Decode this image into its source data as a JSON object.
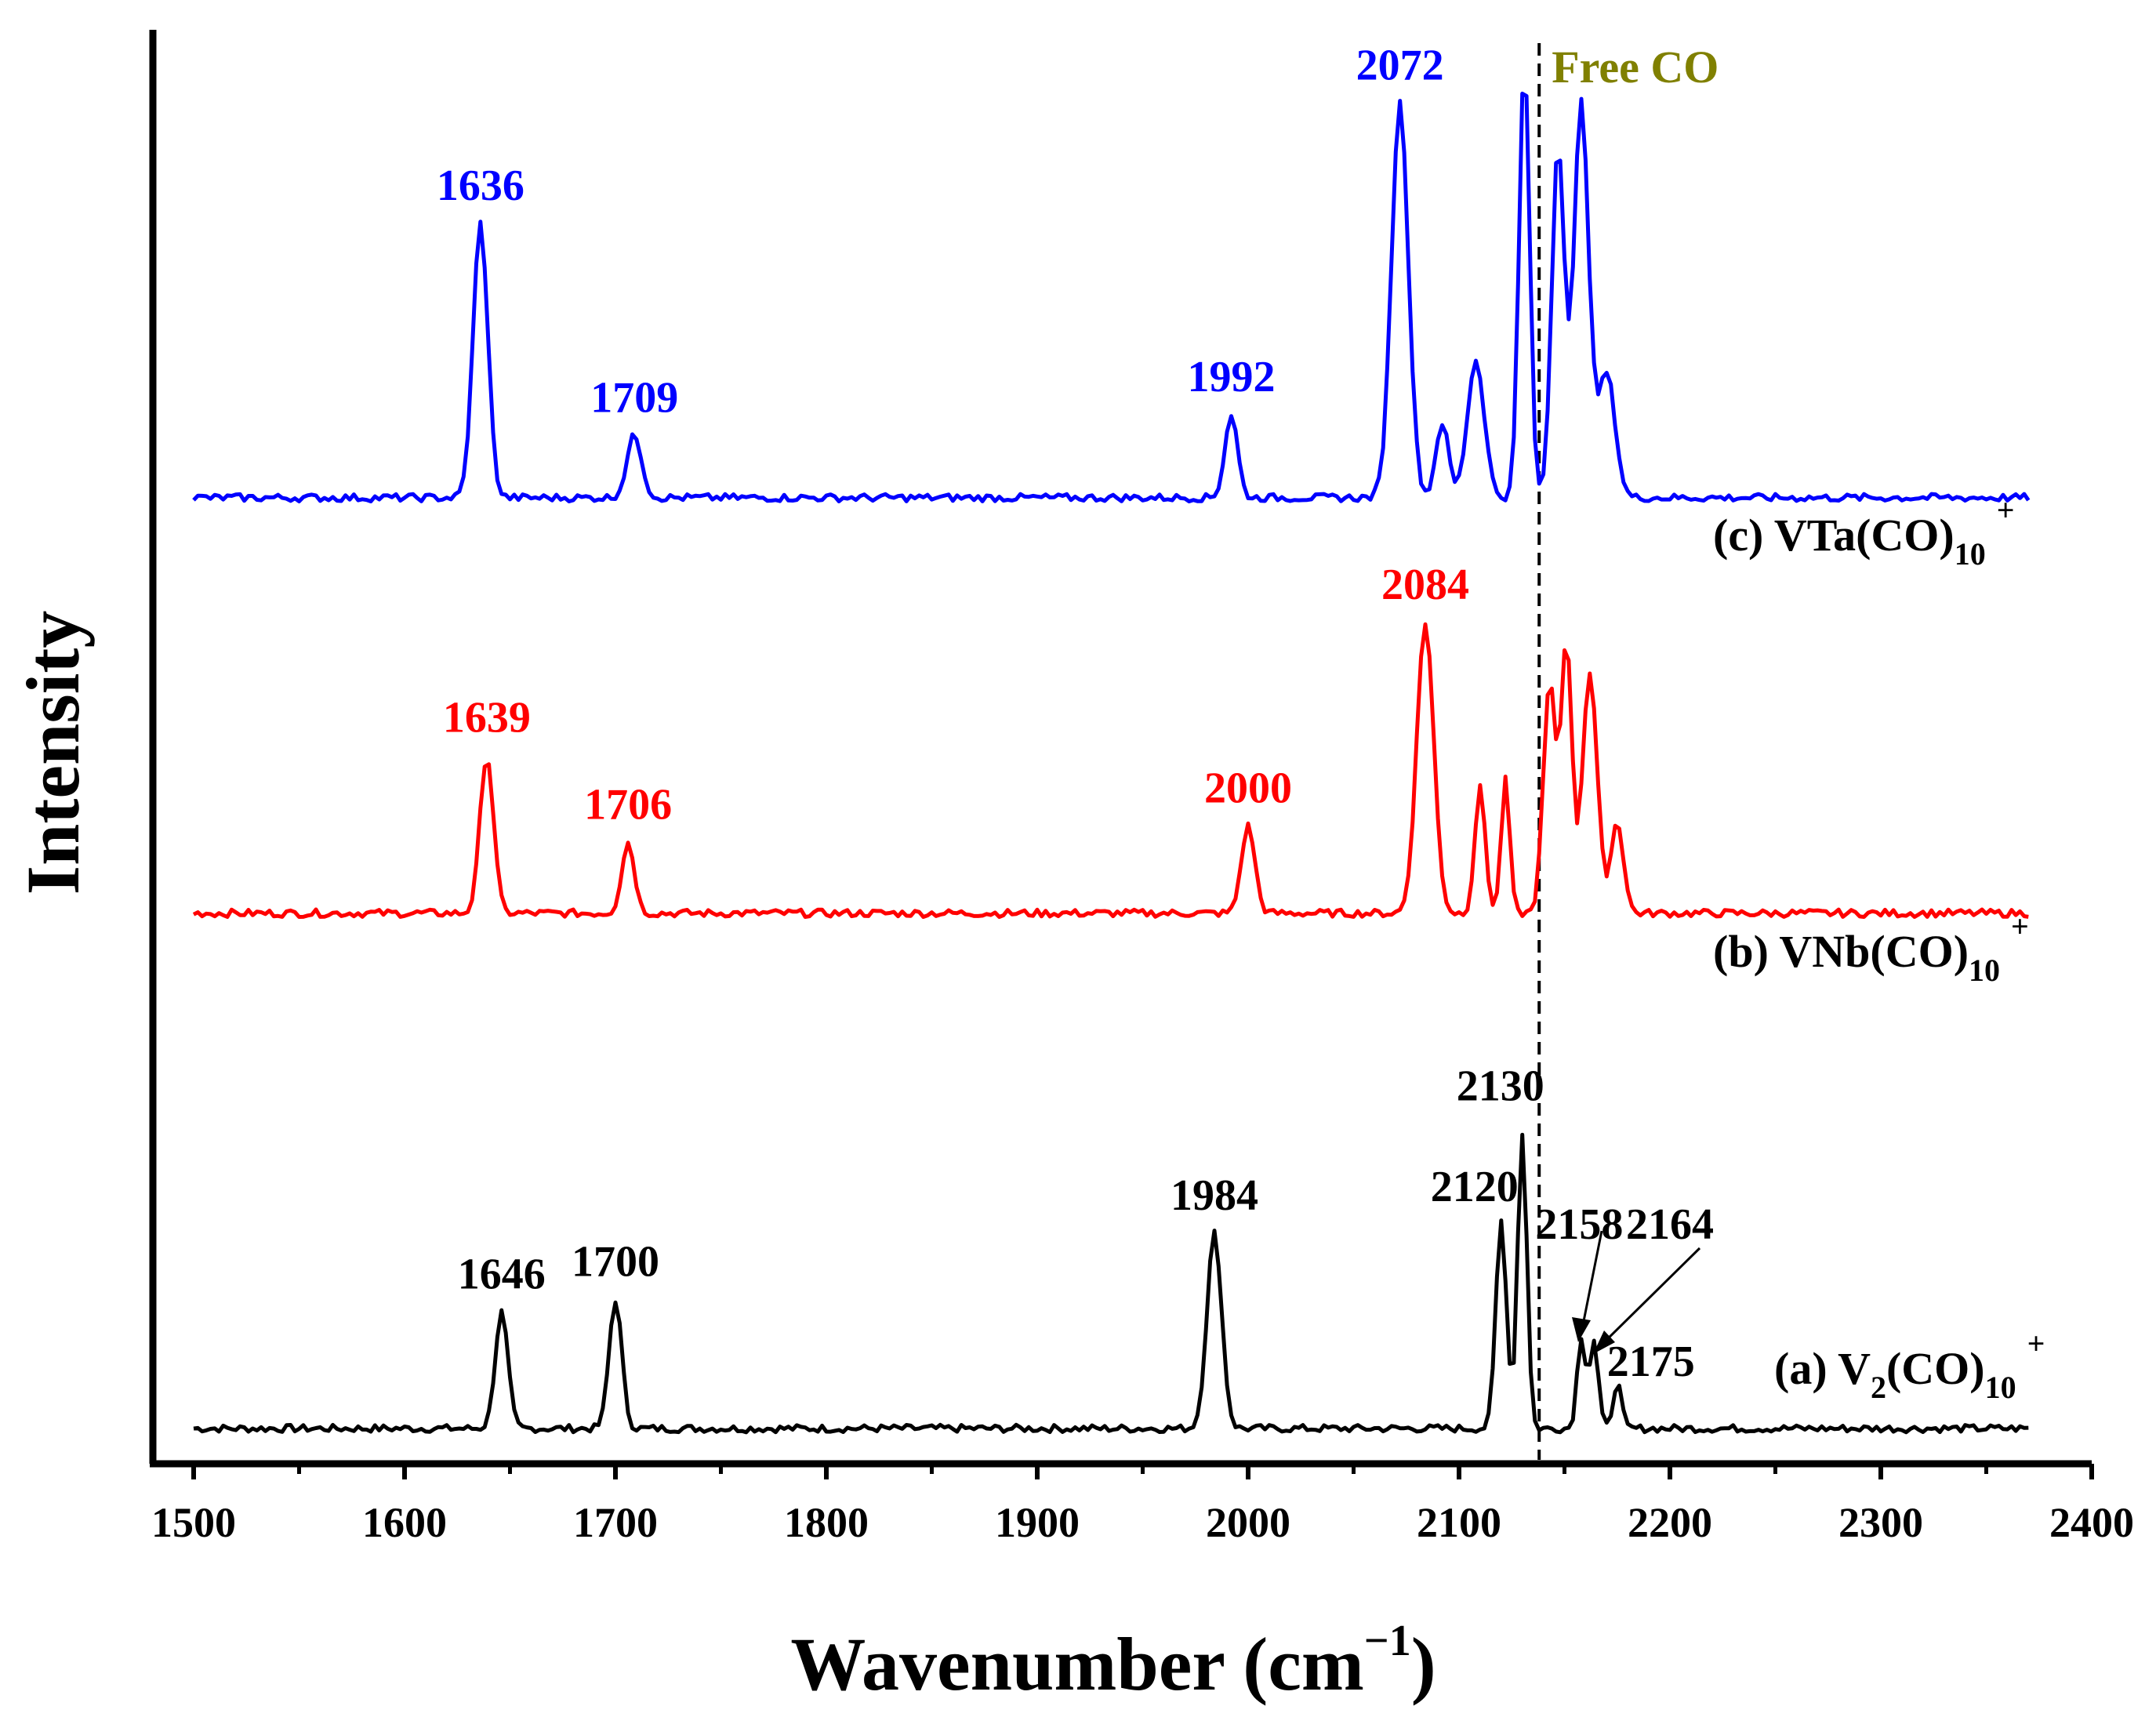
{
  "chart_data": {
    "type": "line",
    "title": "",
    "xlabel_main": "Wavenumber (cm",
    "xlabel_sup": "−1",
    "xlabel_end": ")",
    "ylabel": "Intensity",
    "xlim": [
      1480,
      2400
    ],
    "xticks": [
      1500,
      1600,
      1700,
      1800,
      1900,
      2000,
      2100,
      2200,
      2300,
      2400
    ],
    "xtick_labels": [
      "1500",
      "1600",
      "1700",
      "1800",
      "1900",
      "2000",
      "2100",
      "2200",
      "2300",
      "2400"
    ],
    "reference_line": {
      "x": 2138,
      "label": "Free CO",
      "color": "#808000"
    },
    "series": [
      {
        "name": "(a) V2(CO)10+",
        "label_main": "(a) V",
        "label_sub1": "2",
        "label_mid": "(CO)",
        "label_sub2": "10",
        "label_sup": "+",
        "color": "#000000",
        "offset": 0,
        "peaks": [
          {
            "x": 1646,
            "h": 0.28,
            "w": 3.0,
            "label": "1646"
          },
          {
            "x": 1700,
            "h": 0.31,
            "w": 3.0,
            "label": "1700"
          },
          {
            "x": 1984,
            "h": 0.47,
            "w": 3.5,
            "label": "1984"
          },
          {
            "x": 2120,
            "h": 0.5,
            "w": 2.5,
            "label": "2120"
          },
          {
            "x": 2130,
            "h": 0.71,
            "w": 2.2,
            "label": "2130"
          },
          {
            "x": 2158,
            "h": 0.22,
            "w": 2.0,
            "label": "2158"
          },
          {
            "x": 2164,
            "h": 0.21,
            "w": 2.0,
            "label": "2164"
          },
          {
            "x": 2175,
            "h": 0.11,
            "w": 2.0,
            "label": "2175"
          }
        ]
      },
      {
        "name": "(b) VNb(CO)10+",
        "label_main": "(b) VNb",
        "label_sub1": "",
        "label_mid": "(CO)",
        "label_sub2": "10",
        "label_sup": "+",
        "color": "#ff0000",
        "offset": 1.24,
        "peaks": [
          {
            "x": 1639,
            "h": 0.38,
            "w": 3.2,
            "label": "1639"
          },
          {
            "x": 1706,
            "h": 0.17,
            "w": 3.0,
            "label": "1706"
          },
          {
            "x": 2000,
            "h": 0.21,
            "w": 3.2,
            "label": "2000"
          },
          {
            "x": 2084,
            "h": 0.7,
            "w": 4.0,
            "label": "2084"
          },
          {
            "x": 2110,
            "h": 0.3,
            "w": 2.5,
            "label": ""
          },
          {
            "x": 2122,
            "h": 0.32,
            "w": 2.0,
            "label": ""
          },
          {
            "x": 2143,
            "h": 0.55,
            "w": 3.0,
            "label": ""
          },
          {
            "x": 2151,
            "h": 0.65,
            "w": 2.5,
            "label": ""
          },
          {
            "x": 2162,
            "h": 0.58,
            "w": 3.5,
            "label": ""
          },
          {
            "x": 2175,
            "h": 0.22,
            "w": 3.0,
            "label": ""
          }
        ]
      },
      {
        "name": "(c) VTa(CO)10+",
        "label_main": "(c) VTa",
        "label_sub1": "",
        "label_mid": "(CO)",
        "label_sub2": "10",
        "label_sup": "+",
        "color": "#0000ff",
        "offset": 2.24,
        "peaks": [
          {
            "x": 1636,
            "h": 0.66,
            "w": 3.5,
            "label": "1636"
          },
          {
            "x": 1709,
            "h": 0.15,
            "w": 3.5,
            "label": "1709"
          },
          {
            "x": 1992,
            "h": 0.2,
            "w": 3.0,
            "label": "1992"
          },
          {
            "x": 2072,
            "h": 0.95,
            "w": 4.0,
            "label": "2072"
          },
          {
            "x": 2092,
            "h": 0.18,
            "w": 3.0,
            "label": ""
          },
          {
            "x": 2108,
            "h": 0.33,
            "w": 4.0,
            "label": ""
          },
          {
            "x": 2131,
            "h": 1.05,
            "w": 2.5,
            "label": ""
          },
          {
            "x": 2147,
            "h": 0.85,
            "w": 3.0,
            "label": ""
          },
          {
            "x": 2158,
            "h": 0.95,
            "w": 3.5,
            "label": ""
          },
          {
            "x": 2170,
            "h": 0.3,
            "w": 4.0,
            "label": ""
          }
        ]
      }
    ]
  }
}
